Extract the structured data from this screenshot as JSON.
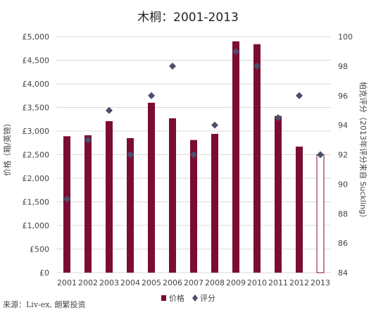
{
  "chart_data": {
    "type": "bar",
    "title": "木桐：2001-2013",
    "categories": [
      "2001",
      "2002",
      "2003",
      "2004",
      "2005",
      "2006",
      "2007",
      "2008",
      "2009",
      "2010",
      "2011",
      "2012",
      "2013"
    ],
    "series": [
      {
        "name": "价格",
        "type": "bar",
        "axis": "left",
        "values": [
          2890,
          2910,
          3210,
          2850,
          3600,
          3270,
          2810,
          2940,
          4900,
          4840,
          3320,
          2670,
          2500
        ],
        "hollow_last": true
      },
      {
        "name": "评分",
        "type": "scatter",
        "axis": "right",
        "values": [
          89,
          93,
          95,
          92,
          96,
          98,
          92,
          94,
          99,
          98,
          94.5,
          96,
          92
        ]
      }
    ],
    "ylabel": "价格（箱/英镑）",
    "y2label": "帕克评分（2013年评分来自 Suckling）",
    "ylim": [
      0,
      5000
    ],
    "y2lim": [
      84,
      100
    ],
    "yticks": [
      "£0",
      "£500",
      "£1,000",
      "£1,500",
      "£2,000",
      "£2,500",
      "£3,000",
      "£3,500",
      "£4,000",
      "£4,500",
      "£5,000"
    ],
    "y2ticks": [
      "84",
      "86",
      "88",
      "90",
      "92",
      "94",
      "96",
      "98",
      "100"
    ],
    "grid": true,
    "legend_position": "bottom",
    "source": "来源：Liv-ex, 朗繁投资",
    "colors": {
      "bar": "#7b0c35",
      "marker": "#4a4f6b",
      "grid": "#d9d9d9"
    }
  }
}
